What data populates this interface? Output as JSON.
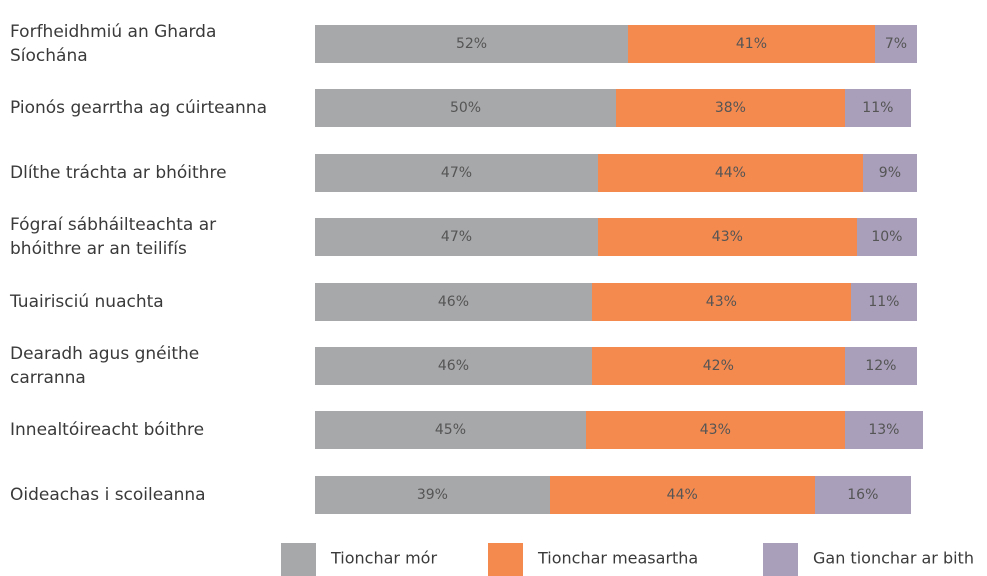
{
  "chart_data": {
    "type": "stacked_barh",
    "categories": [
      "Forfheidhmiú an Gharda Síochána",
      "Pionós gearrtha ag cúirteanna",
      "Dlíthe tráchta ar bhóithre",
      "Fógraí sábháilteachta ar bhóithre ar an teilifís",
      "Tuairisciú nuachta",
      "Dearadh agus gnéithe carranna",
      "Innealtóireacht bóithre",
      "Oideachas i scoileanna"
    ],
    "series": [
      {
        "name": "Tionchar mór",
        "color": "#a7a8aa",
        "values": [
          52,
          50,
          47,
          47,
          46,
          46,
          45,
          39
        ],
        "value_labels": [
          "52%",
          "50%",
          "47%",
          "47%",
          "46%",
          "46%",
          "45%",
          "39%"
        ]
      },
      {
        "name": "Tionchar measartha",
        "color": "#f58a4f",
        "values": [
          41,
          38,
          44,
          43,
          43,
          42,
          43,
          44
        ],
        "value_labels": [
          "41%",
          "38%",
          "44%",
          "43%",
          "43%",
          "42%",
          "43%",
          "44%"
        ]
      },
      {
        "name": "Gan tionchar ar bith",
        "color": "#a99fba",
        "values": [
          7,
          11,
          9,
          10,
          11,
          12,
          13,
          16
        ],
        "value_labels": [
          "7%",
          "11%",
          "9%",
          "10%",
          "11%",
          "12%",
          "13%",
          "16%"
        ]
      }
    ],
    "xlim": [
      0,
      100
    ]
  }
}
